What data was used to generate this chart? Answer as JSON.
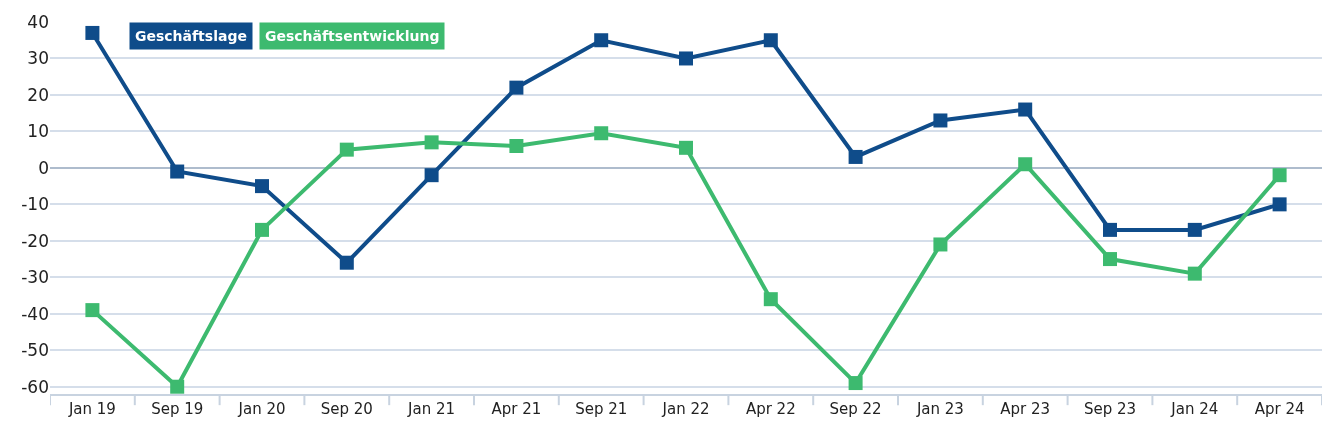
{
  "chart_data": {
    "type": "line",
    "categories": [
      "Jan 19",
      "Sep 19",
      "Jan 20",
      "Sep 20",
      "Jan 21",
      "Apr 21",
      "Sep 21",
      "Jan 22",
      "Apr 22",
      "Sep 22",
      "Jan 23",
      "Apr 23",
      "Sep 23",
      "Jan 24",
      "Apr 24"
    ],
    "series": [
      {
        "name": "Geschäftslage",
        "color": "#0f4c8a",
        "values": [
          37,
          -1,
          -5,
          -26,
          -2,
          22,
          35,
          30,
          35,
          3,
          13,
          16,
          -17,
          -17,
          -10
        ]
      },
      {
        "name": "Geschäftsentwicklung",
        "color": "#3dba6f",
        "values": [
          -39,
          -60,
          -17,
          5,
          7,
          6,
          9.5,
          5.5,
          -36,
          -59,
          -21,
          1,
          -25,
          -29,
          -2
        ]
      }
    ],
    "ylim": [
      -62,
      40
    ],
    "yticks": [
      -60,
      -50,
      -40,
      -30,
      -20,
      -10,
      0,
      10,
      20,
      30,
      40
    ],
    "grid": "y",
    "legend": "top left",
    "marker": "square",
    "line_style": "solid"
  }
}
